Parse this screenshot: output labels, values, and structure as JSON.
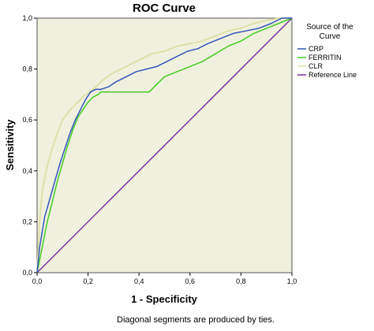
{
  "chart_data": {
    "type": "line",
    "title": "ROC Curve",
    "xlabel": "1 - Specificity",
    "ylabel": "Sensitivity",
    "xlim": [
      0,
      1
    ],
    "ylim": [
      0,
      1
    ],
    "xticks": [
      "0,0",
      "0,2",
      "0,4",
      "0,6",
      "0,8",
      "1,0"
    ],
    "yticks": [
      "0,0",
      "0,2",
      "0,4",
      "0,6",
      "0,8",
      "1,0"
    ],
    "grid": false,
    "legend": {
      "title": "Source of the Curve",
      "position": "right"
    },
    "footnote": "Diagonal segments are produced by ties.",
    "series": [
      {
        "name": "CRP",
        "color": "#3355bb",
        "x": [
          0,
          0.01,
          0.03,
          0.05,
          0.07,
          0.09,
          0.11,
          0.13,
          0.15,
          0.17,
          0.19,
          0.21,
          0.23,
          0.25,
          0.28,
          0.31,
          0.35,
          0.39,
          0.43,
          0.47,
          0.51,
          0.55,
          0.59,
          0.63,
          0.67,
          0.72,
          0.77,
          0.82,
          0.87,
          0.92,
          0.96,
          1.0
        ],
        "y": [
          0,
          0.1,
          0.22,
          0.29,
          0.36,
          0.43,
          0.49,
          0.55,
          0.6,
          0.64,
          0.68,
          0.71,
          0.72,
          0.72,
          0.73,
          0.75,
          0.77,
          0.79,
          0.8,
          0.81,
          0.83,
          0.85,
          0.87,
          0.88,
          0.9,
          0.92,
          0.94,
          0.95,
          0.96,
          0.98,
          1.0,
          1.0
        ]
      },
      {
        "name": "FERRITIN",
        "color": "#44cc22",
        "x": [
          0,
          0.02,
          0.04,
          0.06,
          0.08,
          0.1,
          0.12,
          0.14,
          0.16,
          0.18,
          0.2,
          0.22,
          0.24,
          0.25,
          0.3,
          0.35,
          0.4,
          0.44,
          0.46,
          0.5,
          0.55,
          0.6,
          0.65,
          0.7,
          0.75,
          0.8,
          0.85,
          0.9,
          0.95,
          1.0
        ],
        "y": [
          0,
          0.1,
          0.2,
          0.28,
          0.36,
          0.43,
          0.5,
          0.56,
          0.61,
          0.64,
          0.67,
          0.69,
          0.7,
          0.71,
          0.71,
          0.71,
          0.71,
          0.71,
          0.73,
          0.77,
          0.79,
          0.81,
          0.83,
          0.86,
          0.89,
          0.91,
          0.94,
          0.96,
          0.98,
          1.0
        ]
      },
      {
        "name": "CLR",
        "color": "#dde0a8",
        "x": [
          0,
          0.01,
          0.02,
          0.04,
          0.06,
          0.08,
          0.1,
          0.13,
          0.16,
          0.19,
          0.22,
          0.25,
          0.29,
          0.33,
          0.37,
          0.41,
          0.45,
          0.5,
          0.55,
          0.6,
          0.65,
          0.7,
          0.75,
          0.8,
          0.85,
          0.9,
          0.95,
          1.0
        ],
        "y": [
          0,
          0.2,
          0.32,
          0.42,
          0.49,
          0.55,
          0.6,
          0.64,
          0.67,
          0.7,
          0.72,
          0.75,
          0.78,
          0.8,
          0.82,
          0.84,
          0.86,
          0.87,
          0.89,
          0.9,
          0.91,
          0.93,
          0.95,
          0.96,
          0.98,
          0.99,
          1.0,
          1.0
        ]
      },
      {
        "name": "Reference Line",
        "color": "#7a2e9e",
        "x": [
          0,
          1
        ],
        "y": [
          0,
          1
        ]
      }
    ]
  }
}
